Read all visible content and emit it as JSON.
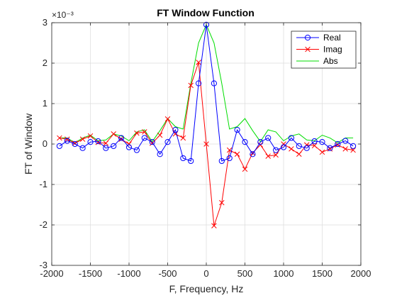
{
  "chart_data": {
    "type": "line",
    "title": "FT Window Function",
    "xlabel": "F, Frequency, Hz",
    "ylabel": "FT of Window",
    "exponent_label": "×10⁻³",
    "xlim": [
      -2000,
      2000
    ],
    "ylim": [
      -3,
      3
    ],
    "xticks": [
      -2000,
      -1500,
      -1000,
      -500,
      0,
      500,
      1000,
      1500,
      2000
    ],
    "xtick_labels": [
      "-2000",
      "-1500",
      "-1000",
      "-500",
      "0",
      "500",
      "1000",
      "1500",
      "2000"
    ],
    "yticks": [
      -3,
      -2,
      -1,
      0,
      1,
      2,
      3
    ],
    "ytick_labels": [
      "-3",
      "-2",
      "-1",
      "0",
      "1",
      "2",
      "3"
    ],
    "grid": true,
    "legend_position": "top-right",
    "x": [
      -1900,
      -1800,
      -1700,
      -1600,
      -1500,
      -1400,
      -1300,
      -1200,
      -1100,
      -1000,
      -900,
      -800,
      -700,
      -600,
      -500,
      -400,
      -300,
      -200,
      -100,
      0,
      100,
      200,
      300,
      400,
      500,
      600,
      700,
      800,
      900,
      1000,
      1100,
      1200,
      1300,
      1400,
      1500,
      1600,
      1700,
      1800,
      1900
    ],
    "series": [
      {
        "name": "Real",
        "color": "#0000ff",
        "marker": "circle",
        "values": [
          -0.05,
          0.08,
          0.0,
          -0.1,
          0.05,
          0.07,
          -0.1,
          -0.05,
          0.15,
          -0.08,
          -0.15,
          0.15,
          0.05,
          -0.25,
          0.05,
          0.35,
          -0.35,
          -0.42,
          1.5,
          2.95,
          1.5,
          -0.42,
          -0.35,
          0.35,
          0.05,
          -0.25,
          0.05,
          0.15,
          -0.15,
          -0.08,
          0.15,
          -0.05,
          -0.1,
          0.07,
          0.05,
          -0.1,
          0.0,
          0.08,
          -0.05
        ]
      },
      {
        "name": "Imag",
        "color": "#ff0000",
        "marker": "x",
        "values": [
          0.15,
          0.12,
          0.02,
          0.12,
          0.2,
          0.04,
          0.02,
          0.25,
          0.12,
          0.0,
          0.27,
          0.3,
          0.02,
          0.22,
          0.62,
          0.25,
          0.15,
          1.45,
          2.02,
          0.0,
          -2.02,
          -1.45,
          -0.15,
          -0.25,
          -0.62,
          -0.22,
          -0.02,
          -0.3,
          -0.27,
          0.0,
          -0.12,
          -0.25,
          -0.02,
          -0.04,
          -0.2,
          -0.12,
          -0.02,
          -0.12,
          -0.15
        ]
      },
      {
        "name": "Abs",
        "color": "#00dd00",
        "marker": "none",
        "values": [
          0.15,
          0.15,
          0.03,
          0.15,
          0.22,
          0.08,
          0.1,
          0.25,
          0.2,
          0.08,
          0.3,
          0.35,
          0.06,
          0.33,
          0.63,
          0.43,
          0.37,
          1.5,
          2.5,
          2.95,
          2.5,
          1.5,
          0.37,
          0.43,
          0.63,
          0.33,
          0.06,
          0.35,
          0.3,
          0.08,
          0.2,
          0.25,
          0.1,
          0.08,
          0.22,
          0.15,
          0.03,
          0.15,
          0.15
        ]
      }
    ]
  }
}
